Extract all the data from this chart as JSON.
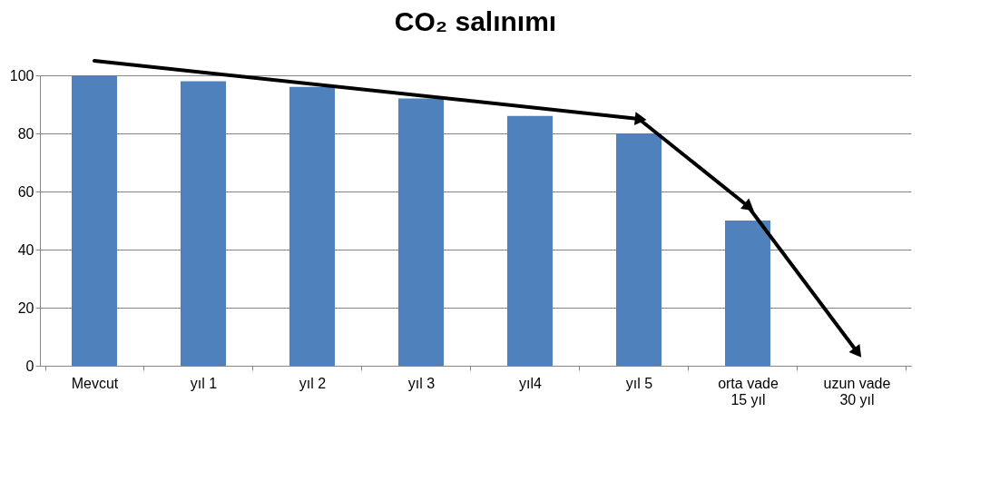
{
  "chart_data": {
    "type": "bar",
    "title": "CO₂ salınımı",
    "categories": [
      "Mevcut",
      "yıl 1",
      "yıl 2",
      "yıl 3",
      "yıl4",
      "yıl 5",
      "orta vade\n15 yıl",
      "uzun vade\n30 yıl"
    ],
    "values": [
      100,
      98,
      96,
      92,
      86,
      80,
      50,
      0
    ],
    "color": "#4f81bd",
    "ylim": [
      0,
      100
    ],
    "yticks": [
      0,
      20,
      40,
      60,
      80,
      100
    ],
    "grid": "y"
  }
}
